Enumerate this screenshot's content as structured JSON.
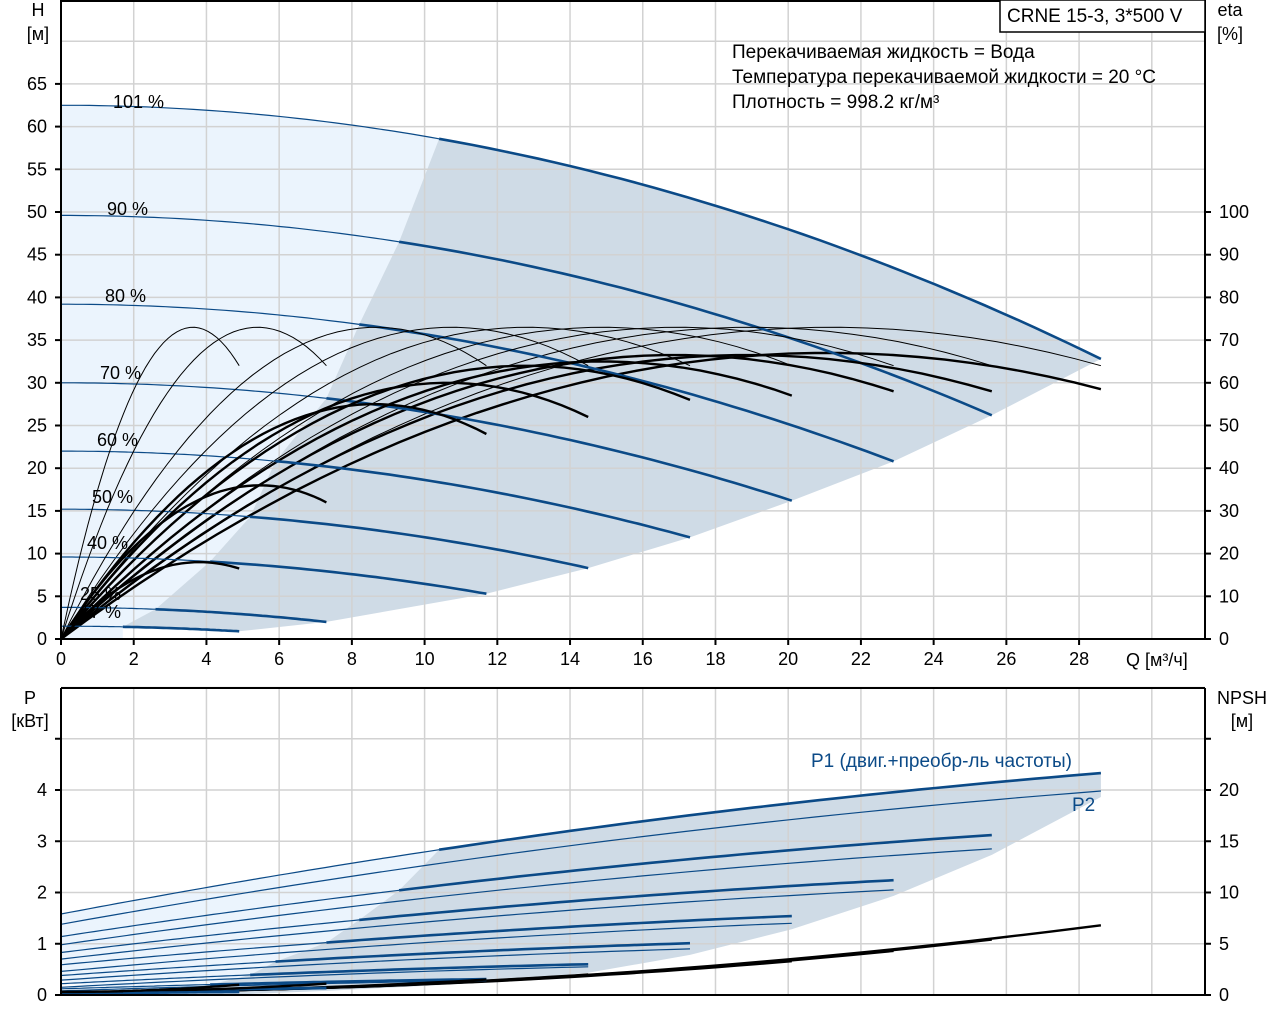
{
  "title_box": "CRNE 15-3, 3*500 V",
  "info": [
    "Перекачиваемая жидкость = Вода",
    "Температура перекачиваемой жидкости = 20 °C",
    "Плотность = 998.2 кг/м³"
  ],
  "colors": {
    "curve_blue": "#0b4a87",
    "dark_region": "#cfdbe6",
    "light_region": "#ebf4fd",
    "grid": "#d2d2d2",
    "eta": "#000000"
  },
  "chart_data": [
    {
      "type": "line",
      "title": "CRNE 15-3, 3*500 V",
      "xlabel": "Q [м³/ч]",
      "ylabel": "H [м]",
      "ylabel_unit": "[м]",
      "ylabel_name": "H",
      "y2label_name": "eta",
      "y2label_unit": "[%]",
      "xlim": [
        0,
        31.5
      ],
      "ylim": [
        0,
        70
      ],
      "y2lim": [
        0,
        100
      ],
      "xticks": [
        0,
        2,
        4,
        6,
        8,
        10,
        12,
        14,
        16,
        18,
        20,
        22,
        24,
        26,
        28
      ],
      "yticks": [
        0,
        5,
        10,
        15,
        20,
        25,
        30,
        35,
        40,
        45,
        50,
        55,
        60,
        65
      ],
      "y2ticks": [
        0,
        10,
        20,
        30,
        40,
        50,
        60,
        70,
        80,
        90,
        100
      ],
      "grid": true,
      "speeds": [
        {
          "label": "101 %",
          "H0": 62.5,
          "Qmin": 10.4,
          "Qend": 28.6,
          "Hend": 32.8,
          "eta_peak": 67,
          "eta_end": 58.5
        },
        {
          "label": "90 %",
          "H0": 49.6,
          "Qmin": 9.3,
          "Qend": 25.6,
          "Hend": 26.2,
          "eta_peak": 66.5,
          "eta_end": 58
        },
        {
          "label": "80 %",
          "H0": 39.2,
          "Qmin": 8.2,
          "Qend": 22.9,
          "Hend": 20.8,
          "eta_peak": 66.5,
          "eta_end": 58
        },
        {
          "label": "70 %",
          "H0": 30.0,
          "Qmin": 7.3,
          "Qend": 20.1,
          "Hend": 16.2,
          "eta_peak": 65,
          "eta_end": 57
        },
        {
          "label": "60 %",
          "H0": 22.0,
          "Qmin": 5.9,
          "Qend": 17.3,
          "Hend": 11.9,
          "eta_peak": 64,
          "eta_end": 56
        },
        {
          "label": "50 %",
          "H0": 15.2,
          "Qmin": 5.2,
          "Qend": 14.5,
          "Hend": 8.3,
          "eta_peak": 60,
          "eta_end": 52
        },
        {
          "label": "40 %",
          "H0": 9.6,
          "Qmin": 4.1,
          "Qend": 11.7,
          "Hend": 5.3,
          "eta_peak": 55,
          "eta_end": 48
        },
        {
          "label": "25 %",
          "H0": 3.7,
          "Qmin": 2.6,
          "Qend": 7.3,
          "Hend": 2.0,
          "eta_peak": 36,
          "eta_end": 32
        },
        {
          "label": "17 %",
          "H0": 1.5,
          "Qmin": 1.7,
          "Qend": 4.9,
          "Hend": 0.9,
          "eta_peak": 18,
          "eta_end": 16.5
        }
      ],
      "pump_eta_peak": 73,
      "pump_eta_end": 64
    },
    {
      "type": "line",
      "ylabel_name": "P",
      "ylabel_unit": "[кВт]",
      "y2label_name": "NPSH",
      "y2label_unit": "[м]",
      "ylim": [
        0,
        6
      ],
      "y2lim": [
        0,
        30
      ],
      "yticks": [
        0,
        1,
        2,
        3,
        4
      ],
      "y2ticks": [
        0,
        5,
        10,
        15,
        20
      ],
      "grid": true,
      "series_labels": {
        "p1": "P1 (двиг.+преобр-ль частоты)",
        "p2": "P2"
      },
      "power": [
        {
          "speed": "101 %",
          "P1_0": 1.58,
          "P1_end": 4.33,
          "P2_0": 1.38,
          "P2_end": 3.98,
          "NPSH_end": 6.8
        },
        {
          "speed": "90 %",
          "P1_0": 1.14,
          "P1_end": 3.12,
          "P2_0": 0.98,
          "P2_end": 2.85,
          "NPSH_end": 5.4
        },
        {
          "speed": "80 %",
          "P1_0": 0.83,
          "P1_end": 2.24,
          "P2_0": 0.7,
          "P2_end": 2.05,
          "NPSH_end": 4.3
        },
        {
          "speed": "70 %",
          "P1_0": 0.59,
          "P1_end": 1.54,
          "P2_0": 0.46,
          "P2_end": 1.4,
          "NPSH_end": 3.3
        },
        {
          "speed": "60 %",
          "P1_0": 0.38,
          "P1_end": 1.01,
          "P2_0": 0.29,
          "P2_end": 0.9,
          "NPSH_end": 2.6
        },
        {
          "speed": "50 %",
          "P1_0": 0.22,
          "P1_end": 0.6,
          "P2_0": 0.15,
          "P2_end": 0.55,
          "NPSH_end": 2.0
        },
        {
          "speed": "40 %",
          "P1_0": 0.12,
          "P1_end": 0.31,
          "P2_0": 0.08,
          "P2_end": 0.28,
          "NPSH_end": 1.5
        },
        {
          "speed": "25 %",
          "P1_0": 0.05,
          "P1_end": 0.14,
          "P2_0": 0.03,
          "P2_end": 0.12,
          "NPSH_end": 1.1
        },
        {
          "speed": "17 %",
          "P1_0": 0.02,
          "P1_end": 0.06,
          "P2_0": 0.01,
          "P2_end": 0.05,
          "NPSH_end": 1.0
        }
      ]
    }
  ]
}
